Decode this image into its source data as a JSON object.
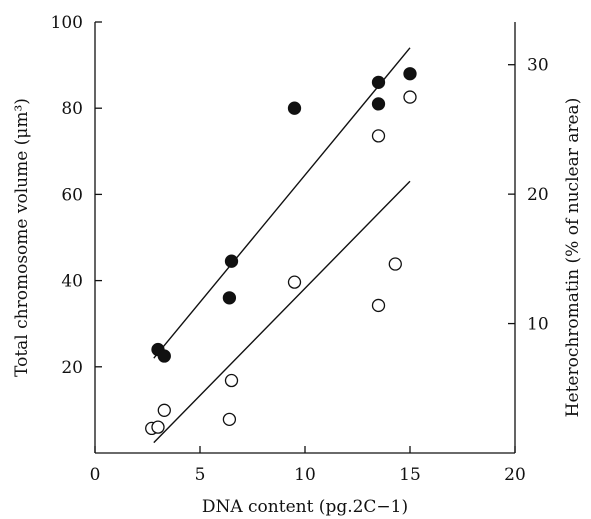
{
  "chart_data": {
    "type": "scatter",
    "xlabel": "DNA content (pg.2C−1)",
    "ylabel": "Total chromosome volume (μm³)",
    "ylabel_right": "Heterochromatin (% of nuclear area)",
    "xlim": [
      0,
      20
    ],
    "ylim": [
      0,
      100
    ],
    "ylim_right": [
      0,
      33.3
    ],
    "x_ticks": [
      "0",
      "5",
      "10",
      "15",
      "20"
    ],
    "y_ticks": [
      "20",
      "40",
      "60",
      "80",
      "100"
    ],
    "y_ticks_right": [
      "10",
      "20",
      "30"
    ],
    "grid": false,
    "series": [
      {
        "marker": "filled-circle",
        "axis": "left",
        "color": "#111111",
        "points": [
          {
            "x": 3.0,
            "y": 24
          },
          {
            "x": 3.3,
            "y": 22.5
          },
          {
            "x": 6.5,
            "y": 44.5
          },
          {
            "x": 6.4,
            "y": 36
          },
          {
            "x": 9.5,
            "y": 80
          },
          {
            "x": 13.5,
            "y": 86
          },
          {
            "x": 13.5,
            "y": 81
          },
          {
            "x": 15.0,
            "y": 88
          }
        ],
        "fit": {
          "x1": 2.8,
          "y1": 22,
          "x2": 15.0,
          "y2": 94
        }
      },
      {
        "marker": "open-circle",
        "axis": "right",
        "color": "#111111",
        "points": [
          {
            "x": 2.7,
            "y": 1.9
          },
          {
            "x": 3.0,
            "y": 2.0
          },
          {
            "x": 3.3,
            "y": 3.3
          },
          {
            "x": 6.4,
            "y": 2.6
          },
          {
            "x": 6.5,
            "y": 5.6
          },
          {
            "x": 9.5,
            "y": 13.2
          },
          {
            "x": 13.5,
            "y": 11.4
          },
          {
            "x": 13.5,
            "y": 24.5
          },
          {
            "x": 14.3,
            "y": 14.6
          },
          {
            "x": 15.0,
            "y": 27.5
          }
        ],
        "fit": {
          "x1": 2.8,
          "y1": 0.8,
          "x2": 15.0,
          "y2": 21.0
        }
      }
    ]
  }
}
